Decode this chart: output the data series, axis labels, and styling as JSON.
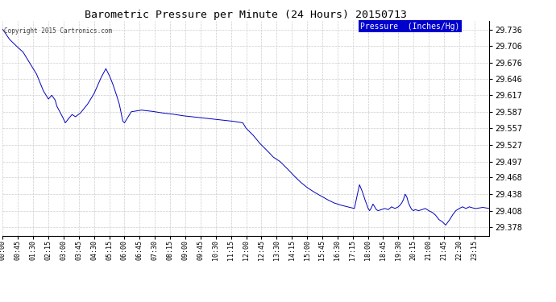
{
  "title": "Barometric Pressure per Minute (24 Hours) 20150713",
  "copyright": "Copyright 2015 Cartronics.com",
  "legend_label": "Pressure  (Inches/Hg)",
  "line_color": "#0000bb",
  "background_color": "#ffffff",
  "grid_color": "#cccccc",
  "yticks": [
    29.378,
    29.408,
    29.438,
    29.468,
    29.497,
    29.527,
    29.557,
    29.587,
    29.617,
    29.646,
    29.676,
    29.706,
    29.736
  ],
  "xtick_labels": [
    "00:00",
    "00:45",
    "01:30",
    "02:15",
    "03:00",
    "03:45",
    "04:30",
    "05:15",
    "06:00",
    "06:45",
    "07:30",
    "08:15",
    "09:00",
    "09:45",
    "10:30",
    "11:15",
    "12:00",
    "12:45",
    "13:30",
    "14:15",
    "15:00",
    "15:45",
    "16:30",
    "17:15",
    "18:00",
    "18:45",
    "19:30",
    "20:15",
    "21:00",
    "21:45",
    "22:30",
    "23:15"
  ],
  "ymin": 29.363,
  "ymax": 29.751,
  "waypoints": [
    [
      0,
      29.736
    ],
    [
      20,
      29.718
    ],
    [
      40,
      29.706
    ],
    [
      60,
      29.695
    ],
    [
      80,
      29.675
    ],
    [
      100,
      29.655
    ],
    [
      120,
      29.625
    ],
    [
      135,
      29.61
    ],
    [
      145,
      29.617
    ],
    [
      155,
      29.608
    ],
    [
      160,
      29.597
    ],
    [
      175,
      29.58
    ],
    [
      185,
      29.567
    ],
    [
      195,
      29.575
    ],
    [
      205,
      29.582
    ],
    [
      215,
      29.578
    ],
    [
      230,
      29.585
    ],
    [
      250,
      29.6
    ],
    [
      270,
      29.62
    ],
    [
      290,
      29.648
    ],
    [
      305,
      29.665
    ],
    [
      315,
      29.653
    ],
    [
      325,
      29.638
    ],
    [
      335,
      29.62
    ],
    [
      345,
      29.6
    ],
    [
      355,
      29.57
    ],
    [
      360,
      29.567
    ],
    [
      380,
      29.587
    ],
    [
      410,
      29.59
    ],
    [
      440,
      29.588
    ],
    [
      470,
      29.585
    ],
    [
      500,
      29.583
    ],
    [
      530,
      29.58
    ],
    [
      560,
      29.578
    ],
    [
      590,
      29.576
    ],
    [
      620,
      29.574
    ],
    [
      650,
      29.572
    ],
    [
      680,
      29.57
    ],
    [
      710,
      29.567
    ],
    [
      720,
      29.557
    ],
    [
      740,
      29.545
    ],
    [
      760,
      29.53
    ],
    [
      780,
      29.518
    ],
    [
      800,
      29.505
    ],
    [
      820,
      29.497
    ],
    [
      840,
      29.485
    ],
    [
      860,
      29.472
    ],
    [
      880,
      29.46
    ],
    [
      900,
      29.45
    ],
    [
      920,
      29.442
    ],
    [
      940,
      29.435
    ],
    [
      960,
      29.428
    ],
    [
      980,
      29.422
    ],
    [
      1000,
      29.418
    ],
    [
      1020,
      29.415
    ],
    [
      1040,
      29.412
    ],
    [
      1055,
      29.455
    ],
    [
      1060,
      29.448
    ],
    [
      1065,
      29.44
    ],
    [
      1070,
      29.43
    ],
    [
      1075,
      29.422
    ],
    [
      1080,
      29.413
    ],
    [
      1085,
      29.408
    ],
    [
      1090,
      29.413
    ],
    [
      1095,
      29.42
    ],
    [
      1100,
      29.415
    ],
    [
      1105,
      29.41
    ],
    [
      1110,
      29.408
    ],
    [
      1120,
      29.41
    ],
    [
      1130,
      29.412
    ],
    [
      1140,
      29.41
    ],
    [
      1150,
      29.415
    ],
    [
      1160,
      29.412
    ],
    [
      1170,
      29.415
    ],
    [
      1175,
      29.418
    ],
    [
      1180,
      29.422
    ],
    [
      1185,
      29.428
    ],
    [
      1190,
      29.438
    ],
    [
      1195,
      29.433
    ],
    [
      1200,
      29.422
    ],
    [
      1205,
      29.415
    ],
    [
      1210,
      29.41
    ],
    [
      1215,
      29.408
    ],
    [
      1220,
      29.41
    ],
    [
      1230,
      29.408
    ],
    [
      1240,
      29.41
    ],
    [
      1250,
      29.412
    ],
    [
      1260,
      29.408
    ],
    [
      1270,
      29.405
    ],
    [
      1280,
      29.4
    ],
    [
      1290,
      29.392
    ],
    [
      1300,
      29.388
    ],
    [
      1310,
      29.382
    ],
    [
      1320,
      29.39
    ],
    [
      1330,
      29.4
    ],
    [
      1340,
      29.408
    ],
    [
      1350,
      29.412
    ],
    [
      1360,
      29.415
    ],
    [
      1370,
      29.412
    ],
    [
      1380,
      29.415
    ],
    [
      1390,
      29.413
    ],
    [
      1400,
      29.412
    ],
    [
      1410,
      29.413
    ],
    [
      1420,
      29.414
    ],
    [
      1430,
      29.413
    ],
    [
      1439,
      29.412
    ]
  ]
}
